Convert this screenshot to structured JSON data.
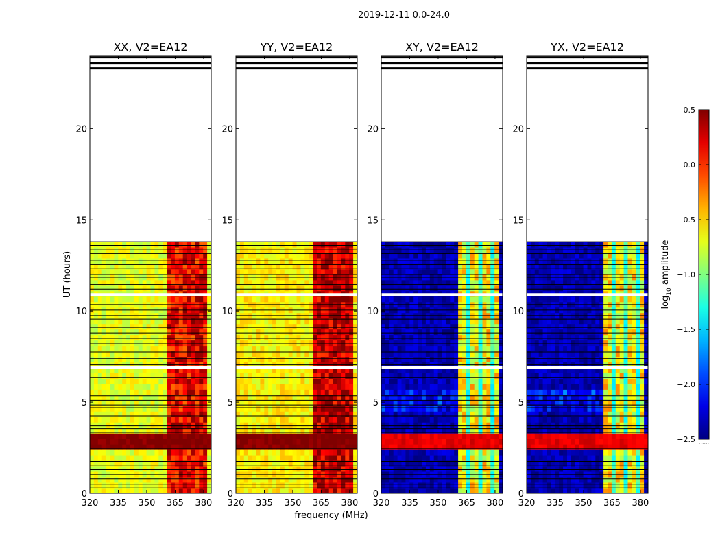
{
  "chart_data": {
    "type": "heatmap",
    "title": "2019-12-11 0.0-24.0",
    "xlabel": "frequency (MHz)",
    "ylabel": "UT (hours)",
    "colorbar": {
      "label_base": "log",
      "label_sub": "10",
      "label_rest": " amplitude",
      "range": [
        -2.5,
        0.5
      ],
      "ticks": [
        "0.5",
        "0.0",
        "−0.5",
        "−1.0",
        "−1.5",
        "−2.0",
        "−2.5"
      ],
      "tick_values": [
        0.5,
        0.0,
        -0.5,
        -1.0,
        -1.5,
        -2.0,
        -2.5
      ],
      "colormap": "jet",
      "caption": "......"
    },
    "x_ticks": [
      "320",
      "335",
      "350",
      "365",
      "380"
    ],
    "x_tick_values": [
      320,
      335,
      350,
      365,
      380
    ],
    "xlim": [
      320,
      384
    ],
    "y_ticks": [
      "0",
      "5",
      "10",
      "15",
      "20"
    ],
    "y_tick_values": [
      0,
      5,
      10,
      15,
      20
    ],
    "ylim": [
      0,
      24
    ],
    "data_time_range_hours": [
      0.0,
      13.8
    ],
    "rfi_band_mhz": [
      361,
      382
    ],
    "flagged_rows_ut": [
      23.3,
      23.6,
      23.9,
      10.9,
      6.9,
      2.9,
      2.6,
      12.6,
      4.7,
      3.5
    ],
    "panels": [
      {
        "title": "XX, V2=EA12",
        "polarization": "XX",
        "base_level": -0.7,
        "band_level": 0.15,
        "band_event_level": 0.5
      },
      {
        "title": "YY, V2=EA12",
        "polarization": "YY",
        "base_level": -0.6,
        "band_level": 0.3,
        "band_event_level": 0.5
      },
      {
        "title": "XY, V2=EA12",
        "polarization": "XY",
        "base_level": -2.35,
        "band_level": -0.6,
        "band_event_level": 0.2
      },
      {
        "title": "YX, V2=EA12",
        "polarization": "YX",
        "base_level": -2.35,
        "band_level": -0.6,
        "band_event_level": 0.2
      }
    ]
  }
}
